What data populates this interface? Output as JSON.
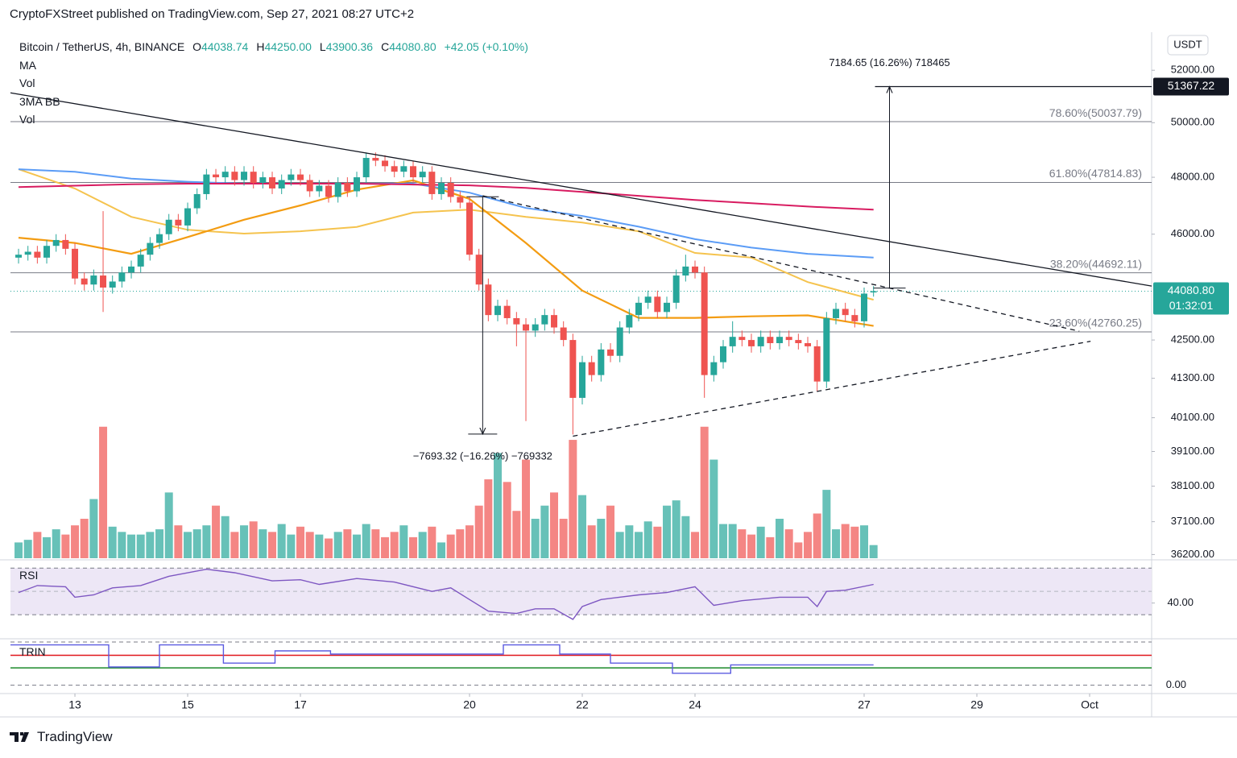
{
  "header": {
    "published": "CryptoFXStreet published on TradingView.com, Sep 27, 2021 08:27 UTC+2",
    "brand": "TradingView"
  },
  "chart_data": [
    {
      "type": "candlestick",
      "title": "Bitcoin / TetherUS, 4h, BINANCE",
      "ohlc_legend": [
        {
          "key": "O",
          "value": "44038.74"
        },
        {
          "key": "H",
          "value": "44250.00"
        },
        {
          "key": "L",
          "value": "43900.36"
        },
        {
          "key": "C",
          "value": "44080.80"
        }
      ],
      "change": "+42.05 (+0.10%)",
      "indicators": [
        "MA",
        "Vol",
        "3MA BB",
        "Vol"
      ],
      "currency": "USDT",
      "log": true,
      "xlim": [
        -0.86,
        120.6
      ],
      "xticks": [
        {
          "value": 6,
          "label": "13"
        },
        {
          "value": 18,
          "label": "15"
        },
        {
          "value": 30,
          "label": "17"
        },
        {
          "value": 48,
          "label": "20"
        },
        {
          "value": 60,
          "label": "22"
        },
        {
          "value": 72,
          "label": "24"
        },
        {
          "value": 90,
          "label": "27"
        },
        {
          "value": 102,
          "label": "29"
        },
        {
          "value": 114,
          "label": "Oct"
        }
      ],
      "ylim": [
        36100,
        53500
      ],
      "yticks": [
        {
          "value": 52000,
          "label": "52000.00"
        },
        {
          "value": 50000,
          "label": "50000.00"
        },
        {
          "value": 48000,
          "label": "48000.00"
        },
        {
          "value": 46000,
          "label": "46000.00"
        },
        {
          "value": 42500,
          "label": "42500.00"
        },
        {
          "value": 41300,
          "label": "41300.00"
        },
        {
          "value": 40100,
          "label": "40100.00"
        },
        {
          "value": 39100,
          "label": "39100.00"
        },
        {
          "value": 38100,
          "label": "38100.00"
        },
        {
          "value": 37100,
          "label": "37100.00"
        },
        {
          "value": 36200,
          "label": "36200.00"
        }
      ],
      "up_color": "#26a69a",
      "down_color": "#ef5350",
      "open": [
        45200,
        45300,
        45400,
        45200,
        45600,
        45800,
        45500,
        44500,
        44300,
        44600,
        44200,
        44400,
        44700,
        44900,
        45300,
        45700,
        46000,
        46500,
        46300,
        46900,
        47400,
        48100,
        48000,
        48200,
        47900,
        48200,
        47800,
        48000,
        47600,
        47900,
        48100,
        47900,
        47500,
        47700,
        47300,
        47800,
        47500,
        48000,
        48700,
        48600,
        48400,
        48200,
        48400,
        48000,
        48200,
        47400,
        47800,
        47300,
        47100,
        45300,
        44300,
        43300,
        43600,
        43200,
        43000,
        42800,
        43000,
        43300,
        42900,
        42500,
        40700,
        41800,
        41400,
        42200,
        42000,
        42900,
        43300,
        43700,
        43900,
        43400,
        43700,
        44600,
        44900,
        44700,
        41400,
        41800,
        42300,
        42600,
        42500,
        42300,
        42600,
        42400,
        42600,
        42500,
        42400,
        42300,
        41200,
        43200,
        43500,
        43300,
        43100,
        44038.74
      ],
      "high": [
        45500,
        45600,
        45600,
        45800,
        46000,
        46000,
        45700,
        44700,
        44800,
        46800,
        44600,
        44900,
        45100,
        45500,
        45900,
        46200,
        46700,
        46700,
        47100,
        47600,
        48300,
        48300,
        48400,
        48400,
        48400,
        48400,
        48200,
        48200,
        48100,
        48300,
        48300,
        48100,
        47900,
        47900,
        48000,
        48000,
        48200,
        48900,
        48900,
        48800,
        48600,
        48600,
        48600,
        48400,
        48400,
        48000,
        48000,
        47500,
        47300,
        45500,
        44500,
        43800,
        43800,
        43400,
        43200,
        43200,
        43500,
        43500,
        43100,
        42700,
        42000,
        42000,
        42400,
        42400,
        43100,
        43500,
        43900,
        44100,
        44100,
        43900,
        44800,
        45300,
        45100,
        44900,
        42000,
        42500,
        43100,
        42800,
        42700,
        42800,
        42800,
        42800,
        42800,
        42700,
        42600,
        42500,
        43400,
        43700,
        43700,
        43500,
        44200,
        44250
      ],
      "low": [
        45000,
        45100,
        45000,
        45000,
        45400,
        45300,
        44300,
        44100,
        44100,
        43400,
        44000,
        44200,
        44500,
        44700,
        45100,
        45500,
        45800,
        46100,
        46100,
        46700,
        47200,
        47800,
        47800,
        47700,
        47700,
        47600,
        47600,
        47400,
        47400,
        47700,
        47700,
        47300,
        47300,
        47100,
        47100,
        47300,
        47300,
        47800,
        48400,
        48200,
        48000,
        48000,
        47800,
        47800,
        47200,
        47200,
        47100,
        46900,
        45100,
        44100,
        43100,
        43100,
        43000,
        42300,
        40000,
        42600,
        42800,
        42700,
        42300,
        39600,
        40500,
        41200,
        41200,
        41800,
        41800,
        42700,
        43100,
        43500,
        43200,
        43200,
        43500,
        44400,
        44500,
        40700,
        41200,
        41600,
        42100,
        42300,
        42100,
        42100,
        42200,
        42200,
        42300,
        42200,
        42100,
        40900,
        41000,
        43000,
        43100,
        42900,
        42900,
        43900.36
      ],
      "close": [
        45300,
        45400,
        45200,
        45600,
        45800,
        45500,
        44500,
        44300,
        44600,
        44200,
        44400,
        44700,
        44900,
        45300,
        45700,
        46000,
        46500,
        46300,
        46900,
        47400,
        48100,
        48000,
        48200,
        47900,
        48200,
        47800,
        48000,
        47600,
        47900,
        48100,
        47900,
        47500,
        47700,
        47300,
        47800,
        47500,
        48000,
        48700,
        48600,
        48400,
        48200,
        48400,
        48000,
        48200,
        47400,
        47800,
        47300,
        47100,
        45300,
        44300,
        43300,
        43600,
        43200,
        43000,
        42800,
        43000,
        43300,
        42900,
        42500,
        40700,
        41800,
        41400,
        42200,
        42000,
        42900,
        43300,
        43700,
        43900,
        43400,
        43700,
        44600,
        44900,
        44700,
        41400,
        41800,
        42300,
        42600,
        42500,
        42300,
        42600,
        42400,
        42600,
        42500,
        42400,
        42300,
        41200,
        43200,
        43500,
        43300,
        43100,
        44000,
        44080.8
      ],
      "volume": {
        "ylim": [
          0,
          400
        ],
        "values": [
          12,
          14,
          20,
          16,
          22,
          18,
          25,
          30,
          45,
          100,
          24,
          20,
          18,
          18,
          20,
          22,
          50,
          25,
          20,
          22,
          25,
          40,
          32,
          20,
          25,
          28,
          22,
          20,
          26,
          18,
          24,
          20,
          18,
          15,
          20,
          22,
          18,
          26,
          22,
          16,
          20,
          25,
          16,
          20,
          24,
          12,
          18,
          22,
          25,
          40,
          60,
          80,
          58,
          36,
          75,
          30,
          40,
          50,
          30,
          90,
          48,
          25,
          30,
          40,
          20,
          25,
          20,
          28,
          24,
          40,
          44,
          32,
          20,
          100,
          75,
          26,
          26,
          22,
          18,
          24,
          16,
          30,
          22,
          12,
          20,
          34,
          52,
          22,
          26,
          24,
          25,
          10
        ]
      },
      "overlays": [
        {
          "color": "#f5c34e",
          "x": [
            0,
            6,
            12,
            18,
            24,
            30,
            36,
            42,
            48,
            54,
            60,
            66,
            72,
            78,
            84,
            91
          ],
          "values": [
            48290,
            47600,
            46600,
            46150,
            46020,
            46100,
            46250,
            46750,
            46850,
            46600,
            46400,
            46100,
            45360,
            45200,
            44380,
            43800
          ]
        },
        {
          "color": "#f39c12",
          "x": [
            0,
            6,
            12,
            18,
            24,
            30,
            36,
            42,
            48,
            54,
            60,
            66,
            72,
            78,
            84,
            91
          ],
          "values": [
            45880,
            45700,
            45330,
            45900,
            46500,
            47000,
            47560,
            47890,
            47230,
            45700,
            44100,
            43210,
            43210,
            43260,
            43290,
            42950
          ]
        },
        {
          "color": "#5b9cf6",
          "x": [
            0,
            6,
            12,
            18,
            24,
            30,
            36,
            42,
            48,
            54,
            60,
            66,
            72,
            78,
            84,
            91
          ],
          "values": [
            48290,
            48200,
            47950,
            47840,
            47770,
            47770,
            47770,
            47770,
            47450,
            46910,
            46630,
            46260,
            45830,
            45540,
            45330,
            45200
          ]
        },
        {
          "color": "#d81b60",
          "x": [
            0,
            6,
            12,
            18,
            24,
            30,
            36,
            42,
            48,
            54,
            60,
            66,
            72,
            78,
            84,
            91
          ],
          "values": [
            47650,
            47700,
            47750,
            47770,
            47770,
            47770,
            47770,
            47740,
            47710,
            47620,
            47480,
            47340,
            47190,
            47080,
            46960,
            46850
          ]
        }
      ],
      "trendlines": [
        {
          "color": "#131722",
          "dashed": false,
          "x": [
            -0.86,
            120.6
          ],
          "values": [
            51130,
            44250
          ]
        },
        {
          "color": "#131722",
          "dashed": true,
          "x": [
            49.4,
            112.9
          ],
          "values": [
            47340,
            42780
          ]
        },
        {
          "color": "#131722",
          "dashed": true,
          "x": [
            59,
            114.1
          ],
          "values": [
            39550,
            42460
          ]
        }
      ],
      "levels": [
        {
          "value": 50037.79,
          "label": "78.60%(50037.79)"
        },
        {
          "value": 47814.83,
          "label": "61.80%(47814.83)"
        },
        {
          "value": 44692.11,
          "label": "38.20%(44692.11)"
        },
        {
          "value": 42760.25,
          "label": "23.60%(42760.25)"
        }
      ],
      "measures": [
        {
          "x": 92.7,
          "values": [
            44182.57,
            51367.22
          ],
          "label": "7184.65 (16.26%) 718465"
        },
        {
          "x": 49.4,
          "values": [
            47306.32,
            39613
          ],
          "label": "−7693.32 (−16.26%) −769332"
        }
      ],
      "target": {
        "value": 51367.22,
        "label": "51367.22"
      },
      "price_line": {
        "value": 44080.8,
        "label": "44080.80",
        "countdown": "01:32:01",
        "color": "#26a69a"
      }
    },
    {
      "type": "line",
      "title": "RSI",
      "color": "#7e57c2",
      "band_color": "#ede7f6",
      "ylim": [
        10,
        75
      ],
      "yticks": [
        {
          "value": 40,
          "label": "40.00"
        }
      ],
      "bands": [
        70,
        30
      ],
      "midline": 50,
      "x": [
        0,
        2,
        5,
        6,
        8,
        10,
        13,
        16,
        20,
        23,
        27,
        30,
        32,
        36,
        40,
        44,
        46,
        48,
        50,
        53,
        55,
        57,
        59,
        60,
        62,
        66,
        69,
        72,
        74,
        77,
        81,
        84,
        85,
        86,
        88,
        91
      ],
      "values": [
        49,
        55,
        54,
        45,
        47,
        53,
        55,
        63,
        69,
        66,
        59,
        60,
        56,
        61,
        58,
        50,
        53,
        43,
        33,
        31,
        35,
        35,
        26,
        37,
        43,
        47,
        49,
        54,
        38,
        42,
        45,
        45,
        37,
        50,
        51,
        56
      ]
    },
    {
      "type": "step",
      "title": "TRIN",
      "color": "#5b5be0",
      "ylim": [
        -0.2,
        1.5
      ],
      "yticks": [
        {
          "value": 0,
          "label": "0.00"
        }
      ],
      "levels": [
        {
          "value": 1,
          "color": "#e0161b"
        },
        {
          "value": 0.58,
          "color": "#1b8a2a"
        }
      ],
      "x": [
        -0.86,
        9.6,
        15,
        21.8,
        27.3,
        33.2,
        51.6,
        57.6,
        63,
        69.6,
        75.8,
        91
      ],
      "values": [
        1.35,
        0.61,
        1.35,
        0.74,
        1.15,
        1.04,
        1.35,
        1.04,
        0.74,
        0.4,
        0.68,
        0.68
      ]
    }
  ]
}
